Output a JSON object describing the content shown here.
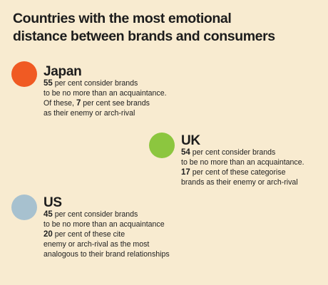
{
  "title": {
    "line1": "Countries with the most emotional",
    "line2": "distance between brands and consumers"
  },
  "colors": {
    "background": "#f8ebd0",
    "japan": "#f05a23",
    "uk": "#8cc63f",
    "us": "#a7c1cf"
  },
  "countries": {
    "japan": {
      "name": "Japan",
      "lines": [
        {
          "num": "55",
          "text": " per cent consider brands"
        },
        {
          "num": "",
          "text": "to be no more than an acquaintance."
        },
        {
          "pre": "Of these, ",
          "num": "7",
          "text": " per cent see brands"
        },
        {
          "num": "",
          "text": "as their enemy or arch-rival"
        }
      ]
    },
    "uk": {
      "name": "UK",
      "lines": [
        {
          "num": "54",
          "text": " per cent consider brands"
        },
        {
          "num": "",
          "text": "to be no more than an acquaintance."
        },
        {
          "num": "17",
          "text": " per cent of these categorise"
        },
        {
          "num": "",
          "text": "brands as their enemy or arch-rival"
        }
      ]
    },
    "us": {
      "name": "US",
      "lines": [
        {
          "num": "45",
          "text": " per cent consider brands"
        },
        {
          "num": "",
          "text": "to be no more than an acquaintance"
        },
        {
          "num": "20",
          "text": " per cent of these cite"
        },
        {
          "num": "",
          "text": "enemy or arch-rival as the most"
        },
        {
          "num": "",
          "text": "analogous to their brand relationships"
        }
      ]
    }
  }
}
